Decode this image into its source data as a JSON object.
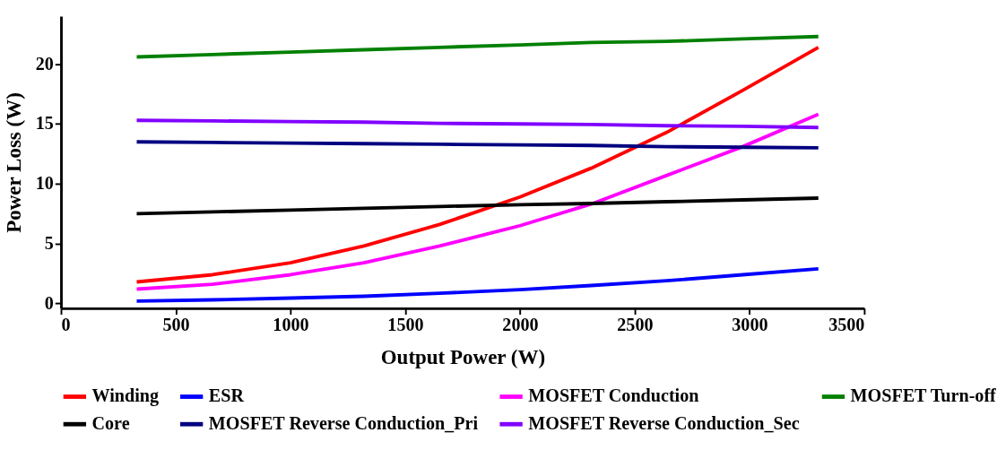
{
  "chart_data": {
    "type": "line",
    "xlabel": "Output Power (W)",
    "ylabel": "Power Loss (W)",
    "x": [
      330,
      660,
      1000,
      1320,
      1650,
      2000,
      2310,
      2640,
      2970,
      3300
    ],
    "xlim": [
      0,
      3500
    ],
    "xticks": [
      0,
      500,
      1000,
      1500,
      2000,
      2500,
      3000,
      3500
    ],
    "ylim": [
      -0.4,
      24
    ],
    "yticks": [
      0,
      5,
      10,
      15,
      20
    ],
    "grid": false,
    "legend": "bottom",
    "marker": "none",
    "line_style": "solid",
    "series": [
      {
        "name": "Winding",
        "color": "#ff0000",
        "values": [
          1.8,
          2.4,
          3.4,
          4.8,
          6.6,
          8.9,
          11.3,
          14.3,
          17.8,
          21.4
        ]
      },
      {
        "name": "ESR",
        "color": "#0000ff",
        "values": [
          0.2,
          0.3,
          0.45,
          0.6,
          0.85,
          1.15,
          1.5,
          1.9,
          2.4,
          2.9
        ]
      },
      {
        "name": "MOSFET Conduction",
        "color": "#ff00ff",
        "values": [
          1.2,
          1.6,
          2.4,
          3.4,
          4.8,
          6.5,
          8.3,
          10.7,
          13.1,
          15.8
        ]
      },
      {
        "name": "MOSFET Turn-off",
        "color": "#008000",
        "values": [
          20.6,
          20.8,
          21.0,
          21.2,
          21.4,
          21.6,
          21.8,
          21.9,
          22.1,
          22.3
        ]
      },
      {
        "name": "Core",
        "color": "#000000",
        "values": [
          7.5,
          7.65,
          7.8,
          7.95,
          8.1,
          8.25,
          8.35,
          8.5,
          8.65,
          8.8
        ]
      },
      {
        "name": "MOSFET Reverse Conduction_Pri",
        "color": "#000080",
        "values": [
          13.5,
          13.45,
          13.4,
          13.35,
          13.3,
          13.25,
          13.2,
          13.1,
          13.05,
          13.0
        ]
      },
      {
        "name": "MOSFET Reverse Conduction_Sec",
        "color": "#8000ff",
        "values": [
          15.3,
          15.25,
          15.2,
          15.15,
          15.05,
          15.0,
          14.95,
          14.85,
          14.8,
          14.7
        ]
      }
    ]
  }
}
